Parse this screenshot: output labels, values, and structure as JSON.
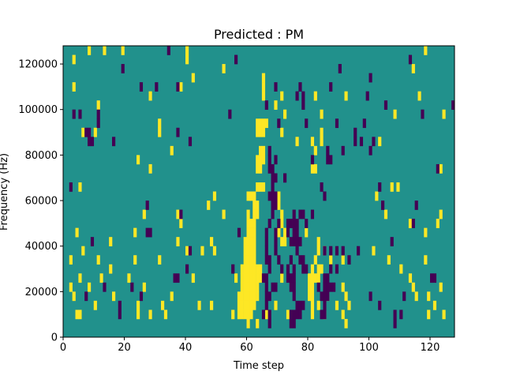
{
  "chart_data": {
    "type": "heatmap",
    "title": "Predicted : PM",
    "xlabel": "Time step",
    "ylabel": "Frequency (Hz)",
    "xlim": [
      0,
      128
    ],
    "ylim": [
      0,
      128000
    ],
    "x_ticks": [
      0,
      20,
      40,
      60,
      80,
      100,
      120
    ],
    "y_ticks": [
      0,
      20000,
      40000,
      60000,
      80000,
      100000,
      120000
    ],
    "grid": false,
    "colormap": "viridis",
    "colors": {
      "background": "#21918c",
      "high": "#fde725",
      "low": "#440154"
    },
    "cell_height_hz": 4000,
    "background_value": 0,
    "cells_high": [
      [
        8,
        124000
      ],
      [
        13,
        124000
      ],
      [
        19,
        124000
      ],
      [
        40,
        124000
      ],
      [
        118,
        124000
      ],
      [
        3,
        120000
      ],
      [
        40,
        120000
      ],
      [
        52,
        116000
      ],
      [
        114,
        116000
      ],
      [
        42,
        112000
      ],
      [
        65,
        112000
      ],
      [
        3,
        108000
      ],
      [
        38,
        108000
      ],
      [
        65,
        108000
      ],
      [
        28,
        104000
      ],
      [
        65,
        104000
      ],
      [
        71,
        104000
      ],
      [
        82,
        104000
      ],
      [
        92,
        104000
      ],
      [
        116,
        104000
      ],
      [
        11,
        100000
      ],
      [
        69,
        100000
      ],
      [
        72,
        96000
      ],
      [
        84,
        96000
      ],
      [
        108,
        96000
      ],
      [
        124,
        96000
      ],
      [
        31,
        92000
      ],
      [
        63,
        92000
      ],
      [
        64,
        92000
      ],
      [
        65,
        92000
      ],
      [
        66,
        92000
      ],
      [
        6,
        88000
      ],
      [
        10,
        88000
      ],
      [
        31,
        88000
      ],
      [
        63,
        88000
      ],
      [
        64,
        88000
      ],
      [
        65,
        88000
      ],
      [
        71,
        88000
      ],
      [
        84,
        88000
      ],
      [
        76,
        84000
      ],
      [
        81,
        84000
      ],
      [
        84,
        84000
      ],
      [
        103,
        84000
      ],
      [
        35,
        80000
      ],
      [
        64,
        80000
      ],
      [
        65,
        80000
      ],
      [
        82,
        80000
      ],
      [
        24,
        76000
      ],
      [
        63,
        76000
      ],
      [
        64,
        76000
      ],
      [
        65,
        76000
      ],
      [
        28,
        72000
      ],
      [
        63,
        72000
      ],
      [
        64,
        72000
      ],
      [
        81,
        72000
      ],
      [
        82,
        72000
      ],
      [
        123,
        72000
      ],
      [
        5,
        64000
      ],
      [
        63,
        64000
      ],
      [
        64,
        64000
      ],
      [
        65,
        64000
      ],
      [
        107,
        64000
      ],
      [
        109,
        64000
      ],
      [
        49,
        60000
      ],
      [
        60,
        60000
      ],
      [
        61,
        60000
      ],
      [
        62,
        60000
      ],
      [
        70,
        60000
      ],
      [
        102,
        60000
      ],
      [
        47,
        56000
      ],
      [
        62,
        56000
      ],
      [
        63,
        56000
      ],
      [
        70,
        56000
      ],
      [
        26,
        52000
      ],
      [
        37,
        52000
      ],
      [
        52,
        52000
      ],
      [
        60,
        52000
      ],
      [
        62,
        52000
      ],
      [
        63,
        52000
      ],
      [
        71,
        52000
      ],
      [
        105,
        52000
      ],
      [
        123,
        52000
      ],
      [
        38,
        48000
      ],
      [
        60,
        48000
      ],
      [
        61,
        48000
      ],
      [
        62,
        48000
      ],
      [
        71,
        48000
      ],
      [
        113,
        48000
      ],
      [
        122,
        48000
      ],
      [
        4,
        44000
      ],
      [
        23,
        44000
      ],
      [
        60,
        44000
      ],
      [
        61,
        44000
      ],
      [
        62,
        44000
      ],
      [
        70,
        44000
      ],
      [
        72,
        44000
      ],
      [
        79,
        44000
      ],
      [
        118,
        44000
      ],
      [
        15,
        40000
      ],
      [
        37,
        40000
      ],
      [
        48,
        40000
      ],
      [
        59,
        40000
      ],
      [
        60,
        40000
      ],
      [
        61,
        40000
      ],
      [
        62,
        40000
      ],
      [
        71,
        40000
      ],
      [
        72,
        40000
      ],
      [
        83,
        40000
      ],
      [
        6,
        36000
      ],
      [
        40,
        36000
      ],
      [
        45,
        36000
      ],
      [
        49,
        36000
      ],
      [
        59,
        36000
      ],
      [
        60,
        36000
      ],
      [
        61,
        36000
      ],
      [
        62,
        36000
      ],
      [
        83,
        36000
      ],
      [
        85,
        36000
      ],
      [
        101,
        36000
      ],
      [
        2,
        32000
      ],
      [
        11,
        32000
      ],
      [
        23,
        32000
      ],
      [
        31,
        32000
      ],
      [
        59,
        32000
      ],
      [
        60,
        32000
      ],
      [
        61,
        32000
      ],
      [
        62,
        32000
      ],
      [
        82,
        32000
      ],
      [
        87,
        32000
      ],
      [
        91,
        32000
      ],
      [
        106,
        32000
      ],
      [
        118,
        32000
      ],
      [
        15,
        28000
      ],
      [
        58,
        28000
      ],
      [
        59,
        28000
      ],
      [
        60,
        28000
      ],
      [
        61,
        28000
      ],
      [
        62,
        28000
      ],
      [
        63,
        28000
      ],
      [
        64,
        28000
      ],
      [
        81,
        28000
      ],
      [
        83,
        28000
      ],
      [
        84,
        28000
      ],
      [
        110,
        28000
      ],
      [
        5,
        24000
      ],
      [
        12,
        24000
      ],
      [
        21,
        24000
      ],
      [
        42,
        24000
      ],
      [
        56,
        24000
      ],
      [
        58,
        24000
      ],
      [
        59,
        24000
      ],
      [
        60,
        24000
      ],
      [
        61,
        24000
      ],
      [
        62,
        24000
      ],
      [
        63,
        24000
      ],
      [
        64,
        24000
      ],
      [
        71,
        24000
      ],
      [
        80,
        24000
      ],
      [
        81,
        24000
      ],
      [
        82,
        24000
      ],
      [
        83,
        24000
      ],
      [
        113,
        24000
      ],
      [
        2,
        20000
      ],
      [
        8,
        20000
      ],
      [
        26,
        20000
      ],
      [
        58,
        20000
      ],
      [
        59,
        20000
      ],
      [
        60,
        20000
      ],
      [
        61,
        20000
      ],
      [
        62,
        20000
      ],
      [
        63,
        20000
      ],
      [
        80,
        20000
      ],
      [
        81,
        20000
      ],
      [
        91,
        20000
      ],
      [
        114,
        20000
      ],
      [
        123,
        20000
      ],
      [
        3,
        16000
      ],
      [
        16,
        16000
      ],
      [
        35,
        16000
      ],
      [
        57,
        16000
      ],
      [
        58,
        16000
      ],
      [
        59,
        16000
      ],
      [
        60,
        16000
      ],
      [
        61,
        16000
      ],
      [
        62,
        16000
      ],
      [
        63,
        16000
      ],
      [
        80,
        16000
      ],
      [
        81,
        16000
      ],
      [
        86,
        16000
      ],
      [
        92,
        16000
      ],
      [
        115,
        16000
      ],
      [
        119,
        16000
      ],
      [
        10,
        12000
      ],
      [
        24,
        12000
      ],
      [
        32,
        12000
      ],
      [
        44,
        12000
      ],
      [
        48,
        12000
      ],
      [
        57,
        12000
      ],
      [
        58,
        12000
      ],
      [
        59,
        12000
      ],
      [
        60,
        12000
      ],
      [
        61,
        12000
      ],
      [
        62,
        12000
      ],
      [
        69,
        12000
      ],
      [
        81,
        12000
      ],
      [
        83,
        12000
      ],
      [
        89,
        12000
      ],
      [
        93,
        12000
      ],
      [
        121,
        12000
      ],
      [
        4,
        8000
      ],
      [
        5,
        8000
      ],
      [
        24,
        8000
      ],
      [
        28,
        8000
      ],
      [
        33,
        8000
      ],
      [
        55,
        8000
      ],
      [
        57,
        8000
      ],
      [
        58,
        8000
      ],
      [
        59,
        8000
      ],
      [
        60,
        8000
      ],
      [
        61,
        8000
      ],
      [
        66,
        8000
      ],
      [
        73,
        8000
      ],
      [
        81,
        8000
      ],
      [
        85,
        8000
      ],
      [
        91,
        8000
      ],
      [
        119,
        8000
      ],
      [
        124,
        8000
      ],
      [
        60,
        4000
      ],
      [
        63,
        4000
      ],
      [
        92,
        4000
      ]
    ],
    "cells_low": [
      [
        34,
        124000
      ],
      [
        113,
        120000
      ],
      [
        56,
        120000
      ],
      [
        19,
        116000
      ],
      [
        90,
        116000
      ],
      [
        100,
        112000
      ],
      [
        25,
        108000
      ],
      [
        30,
        108000
      ],
      [
        37,
        108000
      ],
      [
        69,
        108000
      ],
      [
        77,
        108000
      ],
      [
        87,
        108000
      ],
      [
        99,
        104000
      ],
      [
        76,
        104000
      ],
      [
        78,
        104000
      ],
      [
        66,
        100000
      ],
      [
        78,
        100000
      ],
      [
        105,
        100000
      ],
      [
        128,
        100000
      ],
      [
        3,
        96000
      ],
      [
        5,
        96000
      ],
      [
        11,
        96000
      ],
      [
        54,
        96000
      ],
      [
        117,
        96000
      ],
      [
        79,
        92000
      ],
      [
        89,
        92000
      ],
      [
        11,
        92000
      ],
      [
        70,
        92000
      ],
      [
        98,
        92000
      ],
      [
        7,
        88000
      ],
      [
        8,
        88000
      ],
      [
        37,
        88000
      ],
      [
        95,
        88000
      ],
      [
        9,
        84000
      ],
      [
        8,
        84000
      ],
      [
        16,
        84000
      ],
      [
        41,
        84000
      ],
      [
        95,
        84000
      ],
      [
        97,
        84000
      ],
      [
        101,
        84000
      ],
      [
        100,
        80000
      ],
      [
        67,
        80000
      ],
      [
        86,
        80000
      ],
      [
        91,
        80000
      ],
      [
        67,
        76000
      ],
      [
        69,
        76000
      ],
      [
        86,
        76000
      ],
      [
        87,
        76000
      ],
      [
        81,
        76000
      ],
      [
        67,
        72000
      ],
      [
        68,
        72000
      ],
      [
        122,
        72000
      ],
      [
        69,
        68000
      ],
      [
        72,
        68000
      ],
      [
        68,
        68000
      ],
      [
        84,
        64000
      ],
      [
        68,
        64000
      ],
      [
        103,
        64000
      ],
      [
        2,
        64000
      ],
      [
        67,
        60000
      ],
      [
        68,
        60000
      ],
      [
        69,
        60000
      ],
      [
        85,
        60000
      ],
      [
        69,
        56000
      ],
      [
        68,
        56000
      ],
      [
        104,
        56000
      ],
      [
        115,
        56000
      ],
      [
        27,
        56000
      ],
      [
        68,
        52000
      ],
      [
        81,
        52000
      ],
      [
        38,
        52000
      ],
      [
        75,
        52000
      ],
      [
        77,
        52000
      ],
      [
        78,
        52000
      ],
      [
        67,
        48000
      ],
      [
        74,
        48000
      ],
      [
        75,
        48000
      ],
      [
        76,
        48000
      ],
      [
        73,
        48000
      ],
      [
        79,
        48000
      ],
      [
        70,
        48000
      ],
      [
        114,
        48000
      ],
      [
        66,
        44000
      ],
      [
        69,
        44000
      ],
      [
        73,
        44000
      ],
      [
        75,
        44000
      ],
      [
        76,
        44000
      ],
      [
        57,
        44000
      ],
      [
        27,
        44000
      ],
      [
        28,
        44000
      ],
      [
        66,
        40000
      ],
      [
        69,
        40000
      ],
      [
        77,
        40000
      ],
      [
        74,
        40000
      ],
      [
        75,
        40000
      ],
      [
        76,
        40000
      ],
      [
        107,
        40000
      ],
      [
        9,
        40000
      ],
      [
        66,
        36000
      ],
      [
        69,
        36000
      ],
      [
        76,
        36000
      ],
      [
        41,
        36000
      ],
      [
        89,
        36000
      ],
      [
        96,
        36000
      ],
      [
        87,
        36000
      ],
      [
        85,
        36000
      ],
      [
        91,
        36000
      ],
      [
        70,
        32000
      ],
      [
        74,
        32000
      ],
      [
        78,
        32000
      ],
      [
        77,
        32000
      ],
      [
        66,
        32000
      ],
      [
        67,
        32000
      ],
      [
        93,
        32000
      ],
      [
        40,
        28000
      ],
      [
        67,
        28000
      ],
      [
        71,
        28000
      ],
      [
        73,
        28000
      ],
      [
        75,
        28000
      ],
      [
        79,
        28000
      ],
      [
        78,
        28000
      ],
      [
        87,
        28000
      ],
      [
        89,
        28000
      ],
      [
        55,
        28000
      ],
      [
        36,
        24000
      ],
      [
        37,
        24000
      ],
      [
        65,
        24000
      ],
      [
        66,
        24000
      ],
      [
        73,
        24000
      ],
      [
        74,
        24000
      ],
      [
        75,
        24000
      ],
      [
        85,
        24000
      ],
      [
        86,
        24000
      ],
      [
        120,
        24000
      ],
      [
        121,
        24000
      ],
      [
        66,
        20000
      ],
      [
        68,
        20000
      ],
      [
        69,
        20000
      ],
      [
        74,
        20000
      ],
      [
        75,
        20000
      ],
      [
        83,
        20000
      ],
      [
        85,
        20000
      ],
      [
        86,
        20000
      ],
      [
        87,
        20000
      ],
      [
        88,
        20000
      ],
      [
        22,
        20000
      ],
      [
        13,
        20000
      ],
      [
        66,
        16000
      ],
      [
        67,
        16000
      ],
      [
        75,
        16000
      ],
      [
        84,
        16000
      ],
      [
        85,
        16000
      ],
      [
        86,
        16000
      ],
      [
        100,
        16000
      ],
      [
        111,
        16000
      ],
      [
        7,
        16000
      ],
      [
        25,
        16000
      ],
      [
        66,
        12000
      ],
      [
        76,
        12000
      ],
      [
        77,
        12000
      ],
      [
        78,
        12000
      ],
      [
        85,
        12000
      ],
      [
        103,
        12000
      ],
      [
        18,
        12000
      ],
      [
        67,
        8000
      ],
      [
        65,
        8000
      ],
      [
        74,
        8000
      ],
      [
        75,
        8000
      ],
      [
        76,
        8000
      ],
      [
        77,
        8000
      ],
      [
        84,
        8000
      ],
      [
        85,
        8000
      ],
      [
        108,
        8000
      ],
      [
        110,
        8000
      ],
      [
        18,
        8000
      ],
      [
        67,
        4000
      ],
      [
        74,
        4000
      ],
      [
        75,
        4000
      ],
      [
        108,
        4000
      ]
    ]
  }
}
